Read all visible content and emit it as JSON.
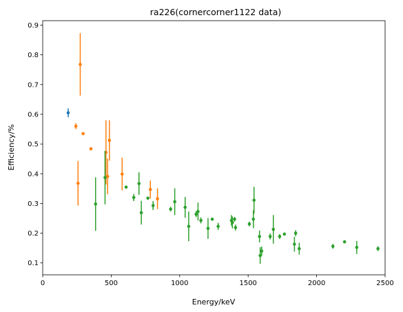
{
  "chart_data": {
    "type": "scatter",
    "title": "ra226(cornercorner1122 data)",
    "xlabel": "Energy/keV",
    "ylabel": "Efficiency/%",
    "xlim": [
      0,
      2500
    ],
    "ylim": [
      0.06,
      0.915
    ],
    "xticks": [
      0,
      500,
      1000,
      1500,
      2000,
      2500
    ],
    "yticks": [
      0.1,
      0.2,
      0.3,
      0.4,
      0.5,
      0.6,
      0.7,
      0.8,
      0.9
    ],
    "grid": false,
    "legend": "none",
    "series": [
      {
        "color": "#1f77b4",
        "points": [
          {
            "x": 186,
            "y": 0.605,
            "err": 0.015
          }
        ]
      },
      {
        "color": "#ff7f0e",
        "points": [
          {
            "x": 242,
            "y": 0.56,
            "err": 0.01
          },
          {
            "x": 258,
            "y": 0.368,
            "err": 0.075
          },
          {
            "x": 274,
            "y": 0.768,
            "err": 0.105
          },
          {
            "x": 295,
            "y": 0.535,
            "err": 0.005
          },
          {
            "x": 352,
            "y": 0.484,
            "err": 0.005
          },
          {
            "x": 462,
            "y": 0.472,
            "err": 0.108
          },
          {
            "x": 474,
            "y": 0.391,
            "err": 0.06
          },
          {
            "x": 487,
            "y": 0.512,
            "err": 0.068
          },
          {
            "x": 580,
            "y": 0.399,
            "err": 0.055
          },
          {
            "x": 786,
            "y": 0.347,
            "err": 0.03
          },
          {
            "x": 838,
            "y": 0.316,
            "err": 0.035
          }
        ]
      },
      {
        "color": "#2ca02c",
        "points": [
          {
            "x": 386,
            "y": 0.298,
            "err": 0.09
          },
          {
            "x": 455,
            "y": 0.387,
            "err": 0.09
          },
          {
            "x": 609,
            "y": 0.355,
            "err": 0.005
          },
          {
            "x": 665,
            "y": 0.32,
            "err": 0.012
          },
          {
            "x": 703,
            "y": 0.367,
            "err": 0.038
          },
          {
            "x": 720,
            "y": 0.269,
            "err": 0.04
          },
          {
            "x": 768,
            "y": 0.318,
            "err": 0.005
          },
          {
            "x": 806,
            "y": 0.293,
            "err": 0.015
          },
          {
            "x": 934,
            "y": 0.281,
            "err": 0.008
          },
          {
            "x": 964,
            "y": 0.306,
            "err": 0.045
          },
          {
            "x": 1040,
            "y": 0.287,
            "err": 0.035
          },
          {
            "x": 1066,
            "y": 0.223,
            "err": 0.05
          },
          {
            "x": 1120,
            "y": 0.264,
            "err": 0.01
          },
          {
            "x": 1134,
            "y": 0.273,
            "err": 0.03
          },
          {
            "x": 1155,
            "y": 0.243,
            "err": 0.01
          },
          {
            "x": 1207,
            "y": 0.216,
            "err": 0.035
          },
          {
            "x": 1238,
            "y": 0.247,
            "err": 0.005
          },
          {
            "x": 1281,
            "y": 0.223,
            "err": 0.012
          },
          {
            "x": 1378,
            "y": 0.243,
            "err": 0.018
          },
          {
            "x": 1385,
            "y": 0.236,
            "err": 0.02
          },
          {
            "x": 1401,
            "y": 0.247,
            "err": 0.008
          },
          {
            "x": 1408,
            "y": 0.219,
            "err": 0.01
          },
          {
            "x": 1509,
            "y": 0.231,
            "err": 0.008
          },
          {
            "x": 1538,
            "y": 0.247,
            "err": 0.03
          },
          {
            "x": 1543,
            "y": 0.311,
            "err": 0.045
          },
          {
            "x": 1583,
            "y": 0.189,
            "err": 0.02
          },
          {
            "x": 1588,
            "y": 0.125,
            "err": 0.028
          },
          {
            "x": 1599,
            "y": 0.14,
            "err": 0.015
          },
          {
            "x": 1661,
            "y": 0.189,
            "err": 0.01
          },
          {
            "x": 1684,
            "y": 0.213,
            "err": 0.048
          },
          {
            "x": 1730,
            "y": 0.189,
            "err": 0.008
          },
          {
            "x": 1765,
            "y": 0.197,
            "err": 0.005
          },
          {
            "x": 1838,
            "y": 0.163,
            "err": 0.025
          },
          {
            "x": 1847,
            "y": 0.2,
            "err": 0.01
          },
          {
            "x": 1873,
            "y": 0.148,
            "err": 0.02
          },
          {
            "x": 2119,
            "y": 0.156,
            "err": 0.008
          },
          {
            "x": 2204,
            "y": 0.171,
            "err": 0.005
          },
          {
            "x": 2293,
            "y": 0.152,
            "err": 0.022
          },
          {
            "x": 2448,
            "y": 0.148,
            "err": 0.008
          }
        ]
      }
    ]
  }
}
